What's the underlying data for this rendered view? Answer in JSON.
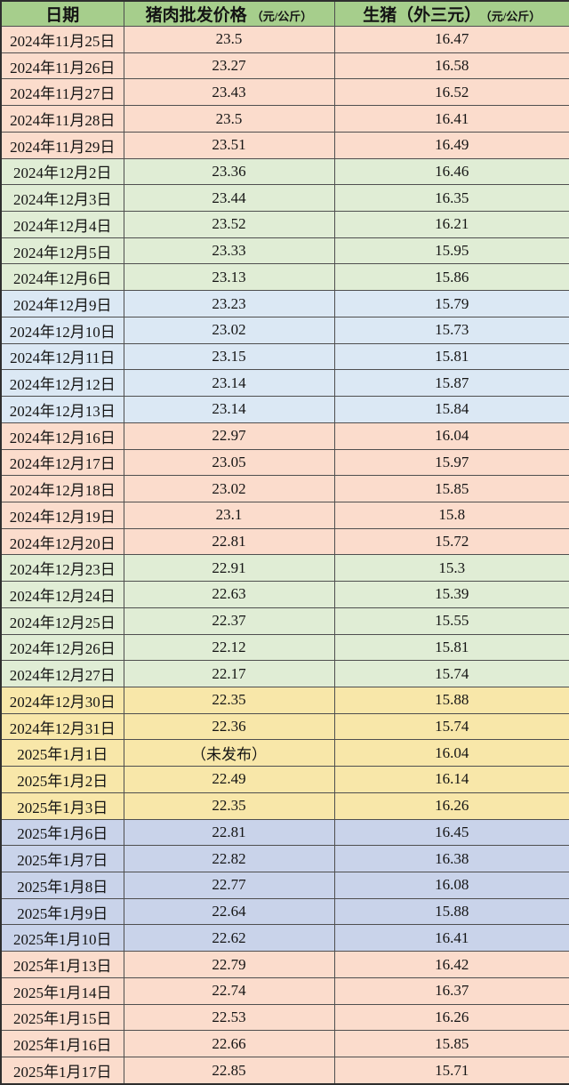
{
  "header": {
    "date_label": "日期",
    "pork_label": "猪肉批发价格",
    "pork_unit": "（元/公斤）",
    "pig_label": "生猪（外三元）",
    "pig_unit": "（元/公斤）"
  },
  "colors": {
    "header_bg": "#a6ce8c",
    "border": "#4f4f4f",
    "text": "#141414",
    "groups": {
      "pink": "#fbdccc",
      "green": "#e0edd5",
      "blue": "#dbe8f4",
      "yellow": "#f8e7a9",
      "lavender": "#c9d3ea"
    }
  },
  "chart_data": {
    "type": "table",
    "columns": [
      "日期",
      "猪肉批发价格（元/公斤）",
      "生猪（外三元）（元/公斤）"
    ],
    "rows": [
      {
        "date": "2024年11月25日",
        "pork": "23.5",
        "pig": "16.47",
        "group": "pink"
      },
      {
        "date": "2024年11月26日",
        "pork": "23.27",
        "pig": "16.58",
        "group": "pink"
      },
      {
        "date": "2024年11月27日",
        "pork": "23.43",
        "pig": "16.52",
        "group": "pink"
      },
      {
        "date": "2024年11月28日",
        "pork": "23.5",
        "pig": "16.41",
        "group": "pink"
      },
      {
        "date": "2024年11月29日",
        "pork": "23.51",
        "pig": "16.49",
        "group": "pink"
      },
      {
        "date": "2024年12月2日",
        "pork": "23.36",
        "pig": "16.46",
        "group": "green"
      },
      {
        "date": "2024年12月3日",
        "pork": "23.44",
        "pig": "16.35",
        "group": "green"
      },
      {
        "date": "2024年12月4日",
        "pork": "23.52",
        "pig": "16.21",
        "group": "green"
      },
      {
        "date": "2024年12月5日",
        "pork": "23.33",
        "pig": "15.95",
        "group": "green"
      },
      {
        "date": "2024年12月6日",
        "pork": "23.13",
        "pig": "15.86",
        "group": "green"
      },
      {
        "date": "2024年12月9日",
        "pork": "23.23",
        "pig": "15.79",
        "group": "blue"
      },
      {
        "date": "2024年12月10日",
        "pork": "23.02",
        "pig": "15.73",
        "group": "blue"
      },
      {
        "date": "2024年12月11日",
        "pork": "23.15",
        "pig": "15.81",
        "group": "blue"
      },
      {
        "date": "2024年12月12日",
        "pork": "23.14",
        "pig": "15.87",
        "group": "blue"
      },
      {
        "date": "2024年12月13日",
        "pork": "23.14",
        "pig": "15.84",
        "group": "blue"
      },
      {
        "date": "2024年12月16日",
        "pork": "22.97",
        "pig": "16.04",
        "group": "pink"
      },
      {
        "date": "2024年12月17日",
        "pork": "23.05",
        "pig": "15.97",
        "group": "pink"
      },
      {
        "date": "2024年12月18日",
        "pork": "23.02",
        "pig": "15.85",
        "group": "pink"
      },
      {
        "date": "2024年12月19日",
        "pork": "23.1",
        "pig": "15.8",
        "group": "pink"
      },
      {
        "date": "2024年12月20日",
        "pork": "22.81",
        "pig": "15.72",
        "group": "pink"
      },
      {
        "date": "2024年12月23日",
        "pork": "22.91",
        "pig": "15.3",
        "group": "green"
      },
      {
        "date": "2024年12月24日",
        "pork": "22.63",
        "pig": "15.39",
        "group": "green"
      },
      {
        "date": "2024年12月25日",
        "pork": "22.37",
        "pig": "15.55",
        "group": "green"
      },
      {
        "date": "2024年12月26日",
        "pork": "22.12",
        "pig": "15.81",
        "group": "green"
      },
      {
        "date": "2024年12月27日",
        "pork": "22.17",
        "pig": "15.74",
        "group": "green"
      },
      {
        "date": "2024年12月30日",
        "pork": "22.35",
        "pig": "15.88",
        "group": "yellow"
      },
      {
        "date": "2024年12月31日",
        "pork": "22.36",
        "pig": "15.74",
        "group": "yellow"
      },
      {
        "date": "2025年1月1日",
        "pork": "（未发布）",
        "pig": "16.04",
        "group": "yellow"
      },
      {
        "date": "2025年1月2日",
        "pork": "22.49",
        "pig": "16.14",
        "group": "yellow"
      },
      {
        "date": "2025年1月3日",
        "pork": "22.35",
        "pig": "16.26",
        "group": "yellow"
      },
      {
        "date": "2025年1月6日",
        "pork": "22.81",
        "pig": "16.45",
        "group": "lavender"
      },
      {
        "date": "2025年1月7日",
        "pork": "22.82",
        "pig": "16.38",
        "group": "lavender"
      },
      {
        "date": "2025年1月8日",
        "pork": "22.77",
        "pig": "16.08",
        "group": "lavender"
      },
      {
        "date": "2025年1月9日",
        "pork": "22.64",
        "pig": "15.88",
        "group": "lavender"
      },
      {
        "date": "2025年1月10日",
        "pork": "22.62",
        "pig": "16.41",
        "group": "lavender"
      },
      {
        "date": "2025年1月13日",
        "pork": "22.79",
        "pig": "16.42",
        "group": "pink"
      },
      {
        "date": "2025年1月14日",
        "pork": "22.74",
        "pig": "16.37",
        "group": "pink"
      },
      {
        "date": "2025年1月15日",
        "pork": "22.53",
        "pig": "16.26",
        "group": "pink"
      },
      {
        "date": "2025年1月16日",
        "pork": "22.66",
        "pig": "15.85",
        "group": "pink"
      },
      {
        "date": "2025年1月17日",
        "pork": "22.85",
        "pig": "15.71",
        "group": "pink"
      }
    ]
  }
}
